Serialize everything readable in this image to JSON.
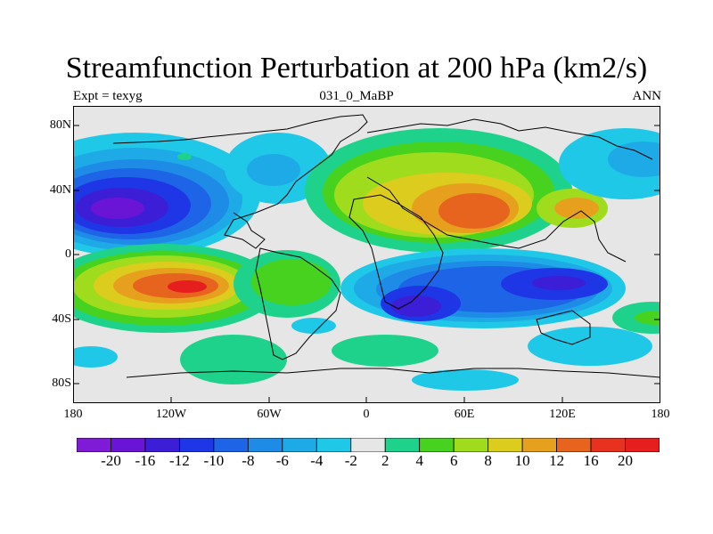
{
  "title": "Streamfunction Perturbation at 200 hPa (km2/s)",
  "left_string": "Expt = texyg",
  "center_string": "031_0_MaBP",
  "right_string": "ANN",
  "lat_labels": [
    "80N",
    "40N",
    "0",
    "40S",
    "80S"
  ],
  "lon_labels": [
    "180",
    "120W",
    "60W",
    "0",
    "60E",
    "120E",
    "180"
  ],
  "colorbar": {
    "labels": [
      "-20",
      "-16",
      "-12",
      "-10",
      "-8",
      "-6",
      "-4",
      "-2",
      "2",
      "4",
      "6",
      "8",
      "10",
      "12",
      "16",
      "20"
    ],
    "colors": [
      "#7f1ad6",
      "#6a14d6",
      "#3b1ed6",
      "#1e36e6",
      "#1e64e6",
      "#1e8ce6",
      "#1eaae6",
      "#1ec8e6",
      "#e6e6e6",
      "#1ed28c",
      "#46d21e",
      "#a0dc1e",
      "#dccc1e",
      "#e6a01e",
      "#e6641e",
      "#e6321e",
      "#e61e1e"
    ]
  },
  "colors": {
    "background": "#e6e6e6",
    "coastline": "#000000"
  }
}
